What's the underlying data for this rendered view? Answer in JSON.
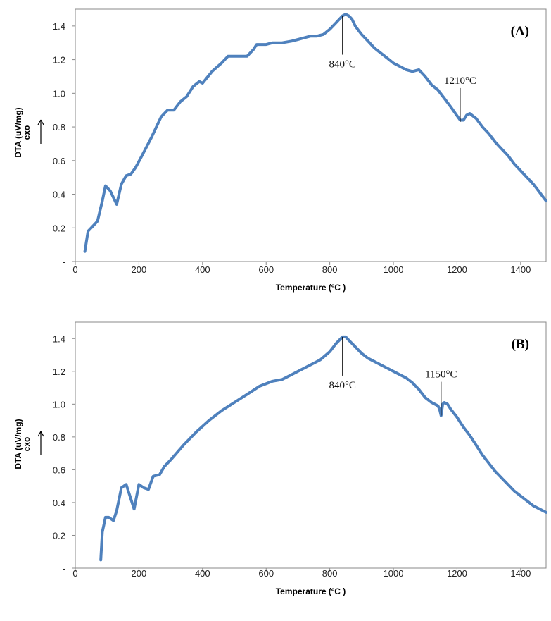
{
  "chart_data": [
    {
      "type": "line",
      "panel_label": "(A)",
      "xlabel": "Temperature (ºC )",
      "ylabel": "DTA (uV/mg)",
      "ylabel_exo": "exo",
      "xlim": [
        0,
        1480
      ],
      "ylim": [
        0,
        1.5
      ],
      "x_ticks": [
        "0",
        "200",
        "400",
        "600",
        "800",
        "1000",
        "1200",
        "1400"
      ],
      "y_ticks": [
        "-",
        "0.2",
        "0.4",
        "0.6",
        "0.8",
        "1.0",
        "1.2",
        "1.4"
      ],
      "line_color": "#4f81bd",
      "grid": false,
      "annotations": [
        {
          "text": "840°C",
          "x": 840,
          "y": 1.46
        },
        {
          "text": "1210°C",
          "x": 1210,
          "y": 0.83
        }
      ],
      "series": [
        {
          "x": [
            30,
            40,
            55,
            70,
            85,
            95,
            110,
            130,
            145,
            160,
            175,
            190,
            210,
            240,
            270,
            290,
            310,
            330,
            350,
            370,
            390,
            400,
            430,
            460,
            480,
            500,
            540,
            560,
            570,
            600,
            620,
            650,
            680,
            700,
            720,
            740,
            760,
            780,
            800,
            820,
            840,
            850,
            860,
            870,
            880,
            900,
            920,
            940,
            960,
            980,
            1000,
            1020,
            1040,
            1060,
            1080,
            1100,
            1120,
            1140,
            1160,
            1180,
            1195,
            1210,
            1220,
            1230,
            1240,
            1260,
            1280,
            1300,
            1320,
            1340,
            1360,
            1380,
            1400,
            1420,
            1440,
            1460,
            1480
          ],
          "y": [
            0.06,
            0.18,
            0.21,
            0.24,
            0.36,
            0.45,
            0.42,
            0.34,
            0.46,
            0.51,
            0.52,
            0.56,
            0.63,
            0.74,
            0.86,
            0.9,
            0.9,
            0.95,
            0.98,
            1.04,
            1.07,
            1.06,
            1.13,
            1.18,
            1.22,
            1.22,
            1.22,
            1.26,
            1.29,
            1.29,
            1.3,
            1.3,
            1.31,
            1.32,
            1.33,
            1.34,
            1.34,
            1.35,
            1.38,
            1.42,
            1.46,
            1.47,
            1.46,
            1.44,
            1.4,
            1.35,
            1.31,
            1.27,
            1.24,
            1.21,
            1.18,
            1.16,
            1.14,
            1.13,
            1.14,
            1.1,
            1.05,
            1.02,
            0.97,
            0.92,
            0.88,
            0.84,
            0.84,
            0.87,
            0.88,
            0.85,
            0.8,
            0.76,
            0.71,
            0.67,
            0.63,
            0.58,
            0.54,
            0.5,
            0.46,
            0.41,
            0.36
          ]
        }
      ]
    },
    {
      "type": "line",
      "panel_label": "(B)",
      "xlabel": "Temperature (ºC )",
      "ylabel": "DTA (uV/mg)",
      "ylabel_exo": "exo",
      "xlim": [
        0,
        1480
      ],
      "ylim": [
        0,
        1.5
      ],
      "x_ticks": [
        "0",
        "200",
        "400",
        "600",
        "800",
        "1000",
        "1200",
        "1400"
      ],
      "y_ticks": [
        "-",
        "0.2",
        "0.4",
        "0.6",
        "0.8",
        "1.0",
        "1.2",
        "1.4"
      ],
      "line_color": "#4f81bd",
      "grid": false,
      "annotations": [
        {
          "text": "840°C",
          "x": 840,
          "y": 1.41
        },
        {
          "text": "1150°C",
          "x": 1150,
          "y": 0.93
        }
      ],
      "series": [
        {
          "x": [
            80,
            85,
            95,
            105,
            120,
            130,
            145,
            160,
            175,
            185,
            200,
            215,
            230,
            245,
            265,
            280,
            300,
            340,
            380,
            420,
            460,
            500,
            540,
            580,
            620,
            650,
            680,
            710,
            740,
            770,
            800,
            820,
            840,
            850,
            860,
            880,
            900,
            920,
            940,
            960,
            980,
            1000,
            1020,
            1040,
            1060,
            1080,
            1100,
            1120,
            1130,
            1140,
            1145,
            1150,
            1155,
            1160,
            1170,
            1180,
            1200,
            1220,
            1240,
            1260,
            1280,
            1300,
            1320,
            1340,
            1360,
            1380,
            1400,
            1420,
            1440,
            1460,
            1480
          ],
          "y": [
            0.05,
            0.22,
            0.31,
            0.31,
            0.29,
            0.35,
            0.49,
            0.51,
            0.42,
            0.36,
            0.51,
            0.49,
            0.48,
            0.56,
            0.57,
            0.62,
            0.66,
            0.75,
            0.83,
            0.9,
            0.96,
            1.01,
            1.06,
            1.11,
            1.14,
            1.15,
            1.18,
            1.21,
            1.24,
            1.27,
            1.32,
            1.37,
            1.41,
            1.41,
            1.39,
            1.35,
            1.31,
            1.28,
            1.26,
            1.24,
            1.22,
            1.2,
            1.18,
            1.16,
            1.13,
            1.09,
            1.04,
            1.01,
            1.0,
            0.99,
            0.97,
            0.93,
            1.0,
            1.01,
            1.0,
            0.97,
            0.92,
            0.86,
            0.81,
            0.75,
            0.69,
            0.64,
            0.59,
            0.55,
            0.51,
            0.47,
            0.44,
            0.41,
            0.38,
            0.36,
            0.34
          ]
        }
      ]
    }
  ]
}
